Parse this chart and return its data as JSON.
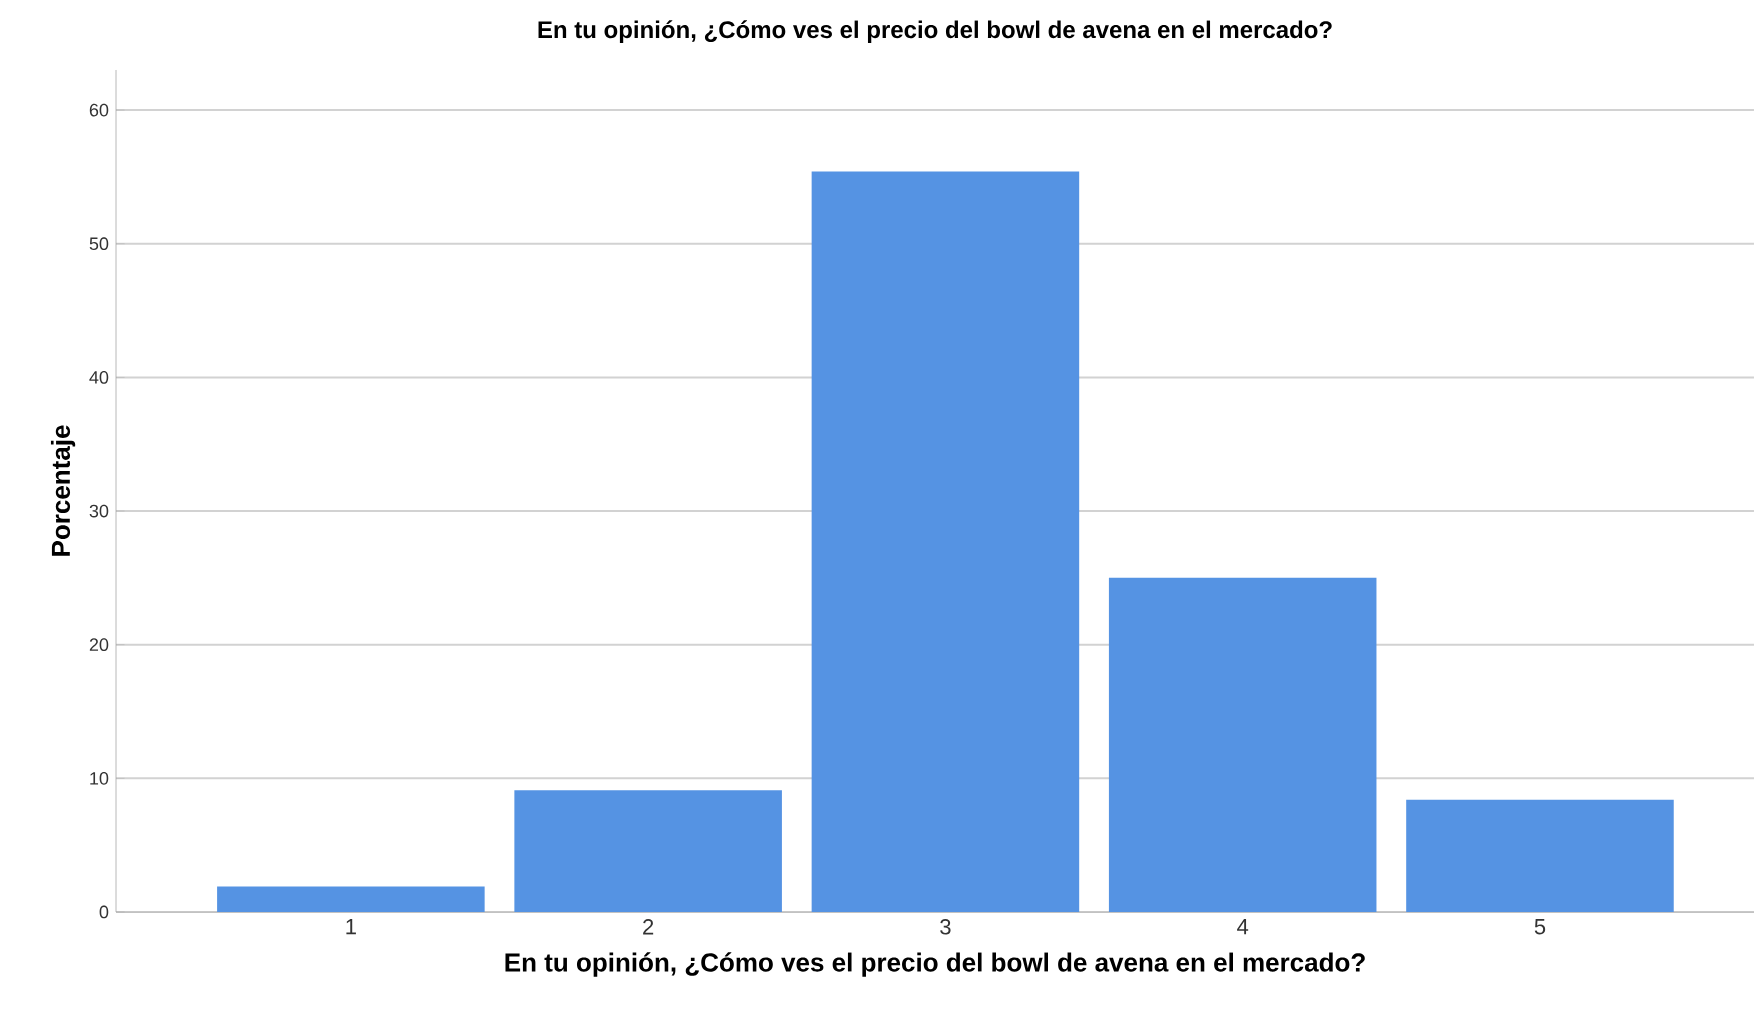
{
  "chart_data": {
    "type": "bar",
    "title": "En tu opinión, ¿Cómo ves el precio del bowl de avena en el mercado?",
    "xlabel": "En tu opinión, ¿Cómo ves el precio del bowl de avena en el mercado?",
    "ylabel": "Porcentaje",
    "categories": [
      "1",
      "2",
      "3",
      "4",
      "5"
    ],
    "values": [
      1.9,
      9.1,
      55.4,
      25.0,
      8.4
    ],
    "color": "#5593e3",
    "ylim": [
      0,
      63
    ],
    "yticks": [
      0,
      10,
      20,
      30,
      40,
      50,
      60
    ],
    "grid": "y"
  }
}
